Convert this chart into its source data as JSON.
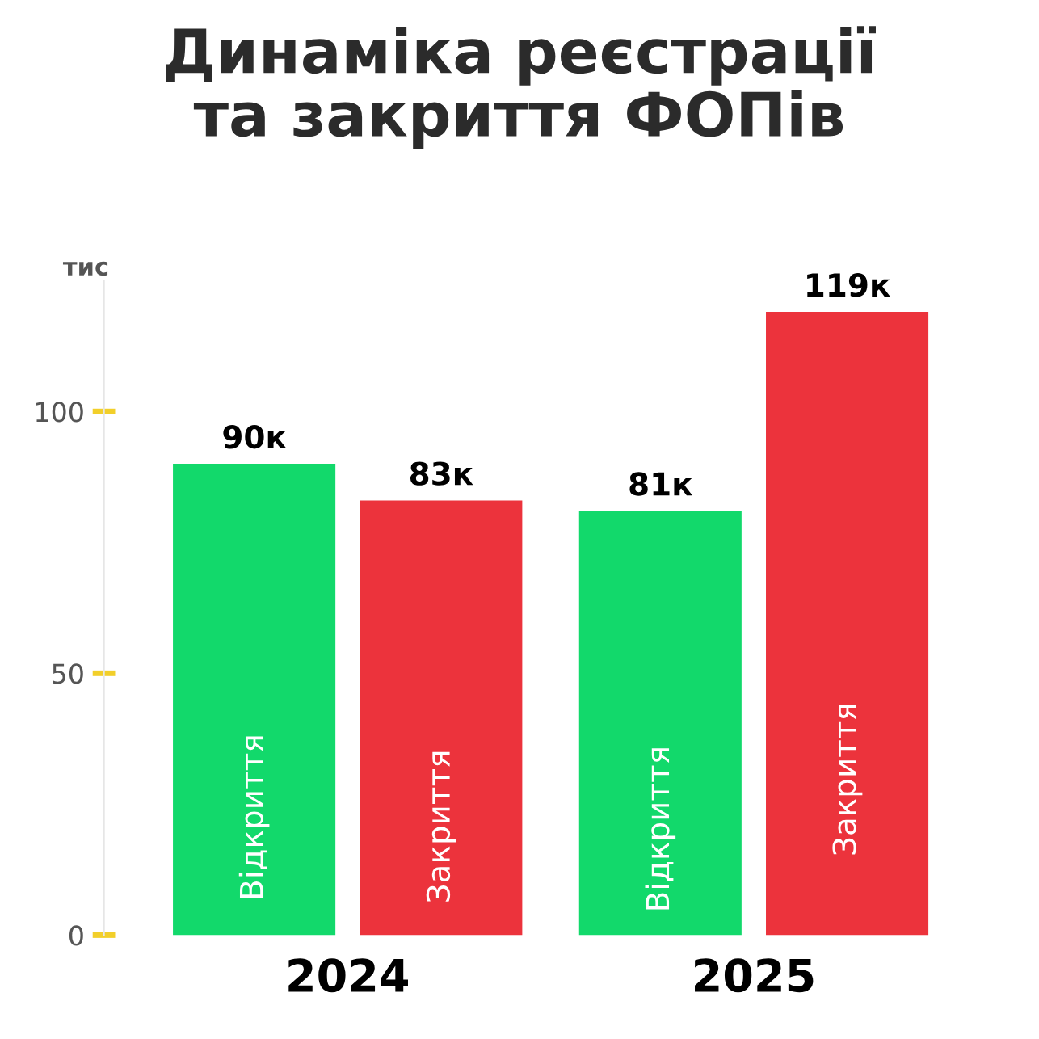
{
  "chart_data": {
    "type": "bar",
    "title": "Динаміка реєстрації\nта закриття ФОПів",
    "ylabel": "тис",
    "categories": [
      "2024",
      "2025"
    ],
    "series": [
      {
        "name": "Відкриття",
        "color": "#12d96b",
        "values": [
          90,
          81
        ],
        "value_labels": [
          "90к",
          "81к"
        ]
      },
      {
        "name": "Закриття",
        "color": "#ec333c",
        "values": [
          83,
          119
        ],
        "value_labels": [
          "83к",
          "119к"
        ]
      }
    ],
    "ylim": [
      0,
      125
    ],
    "yticks": [
      0,
      50,
      100
    ],
    "grid": false,
    "legend": false
  }
}
